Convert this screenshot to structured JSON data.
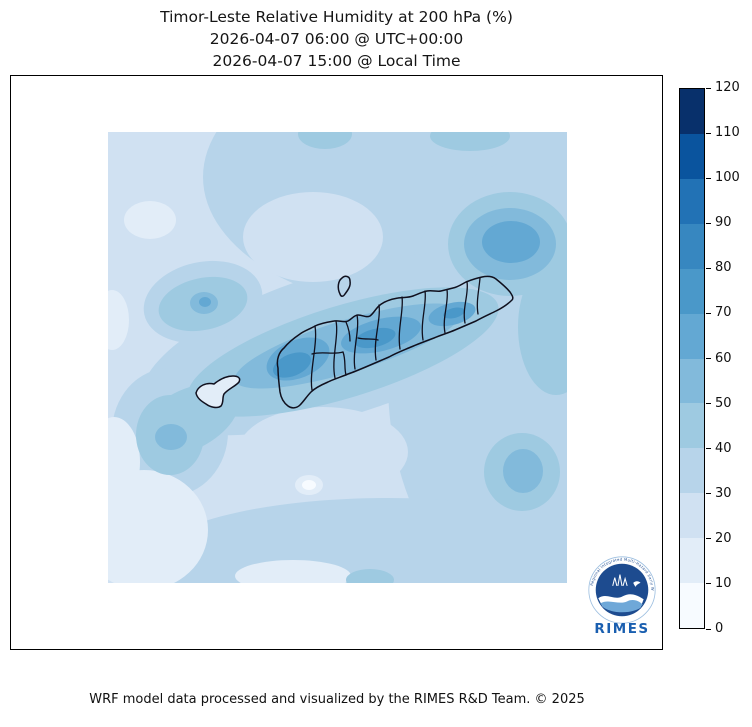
{
  "title": {
    "line1": "Timor-Leste Relative Humidity at 200 hPa (%)",
    "line2": "2026-04-07 06:00 @ UTC+00:00",
    "line3": "2026-04-07 15:00 @ Local Time"
  },
  "footer": "WRF model data processed and visualized by the RIMES R&D Team. © 2025",
  "logo": {
    "wordmark": "RIMES",
    "ring_text": "Regional Integrated Multi-Hazard Early Warning System",
    "disc_color": "#1d4b8f",
    "wordmark_color": "#1a5fb0"
  },
  "chart_data": {
    "type": "heatmap",
    "subtype": "filled-contour-map",
    "title": "Timor-Leste Relative Humidity at 200 hPa (%)",
    "variable": "Relative Humidity",
    "level_hPa": 200,
    "units": "%",
    "time_utc": "2026-04-07 06:00 @ UTC+00:00",
    "time_local": "2026-04-07 15:00 @ Local Time",
    "region": "Timor-Leste and surrounding seas",
    "legend_position": "right",
    "grid": false,
    "colorbar": {
      "min": 0,
      "max": 120,
      "step": 10,
      "ticks": [
        0,
        10,
        20,
        30,
        40,
        50,
        60,
        70,
        80,
        90,
        100,
        110,
        120
      ],
      "palette": [
        "#f7fbff",
        "#e2edf8",
        "#d0e1f2",
        "#b7d4ea",
        "#9ecae1",
        "#82badb",
        "#63a8d3",
        "#4a98c9",
        "#3787c0",
        "#2272b5",
        "#0a549e",
        "#08306b"
      ]
    },
    "boundary_color": "#10101e",
    "observed_values": {
      "background_pct": "20-40",
      "island_band_pct": "50-80",
      "maxima": [
        {
          "location": "west-central Timor-Leste island core",
          "value_pct": "70-80"
        },
        {
          "location": "central Timor-Leste island core",
          "value_pct": "70-80"
        },
        {
          "location": "northeast offshore blob",
          "value_pct": "60-70"
        },
        {
          "location": "southwest offshore blob",
          "value_pct": "50-60"
        },
        {
          "location": "southeast offshore blob",
          "value_pct": "50-60"
        },
        {
          "location": "west offshore small spot",
          "value_pct": "50-60"
        }
      ],
      "minima": [
        {
          "location": "northwest offshore patch",
          "value_pct": "10-20"
        },
        {
          "location": "southwest corner patches",
          "value_pct": "10-20"
        },
        {
          "location": "south-central small spot",
          "value_pct": "0-10"
        }
      ]
    }
  }
}
